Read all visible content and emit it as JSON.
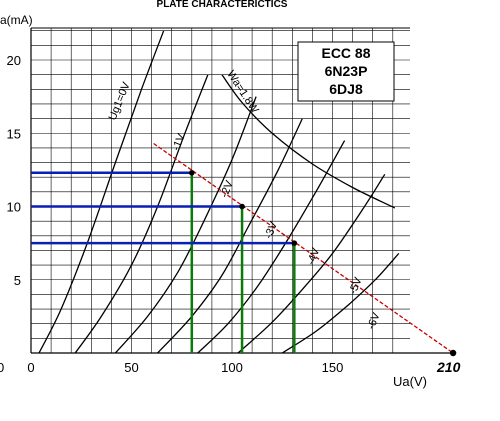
{
  "chart_data": {
    "type": "line",
    "title": "PLATE CHARACTERICTICS",
    "xlabel": "Ua(V)",
    "ylabel": "a(mA)",
    "xlim": [
      0,
      210
    ],
    "ylim": [
      0,
      22
    ],
    "x_ticks": [
      "0",
      "50",
      "100",
      "150"
    ],
    "x_ticks_values": [
      0,
      50,
      100,
      150
    ],
    "y_ticks": [
      "5",
      "10",
      "15",
      "20"
    ],
    "y_ticks_values": [
      5,
      10,
      15,
      20
    ],
    "left_edge_tick": "0",
    "x_end_label": "210",
    "x_end_value": 210,
    "tube_labels": [
      "ECC 88",
      "6N23P",
      "6DJ8"
    ],
    "grid": true,
    "series": [
      {
        "name": "Ug1=0V",
        "x": [
          4,
          15,
          28,
          42,
          55,
          66
        ],
        "y": [
          0,
          3,
          7.5,
          13,
          18,
          22
        ]
      },
      {
        "name": "-1V",
        "x": [
          22,
          35,
          50,
          63,
          76,
          88
        ],
        "y": [
          0,
          2.5,
          6,
          10,
          14.8,
          19
        ]
      },
      {
        "name": "-2V",
        "x": [
          42,
          58,
          73,
          86,
          100,
          112
        ],
        "y": [
          0,
          2.5,
          5.5,
          9,
          13.2,
          17.5
        ]
      },
      {
        "name": "-3V",
        "x": [
          63,
          80,
          95,
          108,
          123,
          135
        ],
        "y": [
          0,
          2.5,
          5.3,
          8.6,
          12.5,
          16
        ]
      },
      {
        "name": "-4V",
        "x": [
          83,
          98,
          113,
          128,
          143,
          156
        ],
        "y": [
          0,
          2,
          4.6,
          7.8,
          11.3,
          14.5
        ]
      },
      {
        "name": "-5V",
        "x": [
          103,
          120,
          136,
          150,
          165,
          176
        ],
        "y": [
          0,
          2.1,
          4.5,
          6.8,
          9.8,
          12.2
        ]
      },
      {
        "name": "-6V",
        "x": [
          125,
          142,
          158,
          172,
          183
        ],
        "y": [
          0,
          1.5,
          3.3,
          5.1,
          6.8
        ]
      }
    ],
    "power_curve": {
      "name": "Wa=1.8W",
      "x": [
        95,
        105,
        120,
        140,
        160,
        181
      ],
      "y": [
        19,
        17.1,
        15,
        12.9,
        11.3,
        9.9
      ]
    },
    "load_line": {
      "x": [
        61,
        210
      ],
      "y": [
        14.3,
        0
      ]
    },
    "operating_points": [
      {
        "x": 80,
        "y": 12.3
      },
      {
        "x": 105,
        "y": 10
      },
      {
        "x": 131,
        "y": 7.5
      }
    ],
    "colors": {
      "load_line": "#cc0000",
      "horizontal_guides": "#0a1fb4",
      "vertical_guides": "#0a7a0a",
      "curves": "#000000",
      "grid": "#000000"
    }
  }
}
